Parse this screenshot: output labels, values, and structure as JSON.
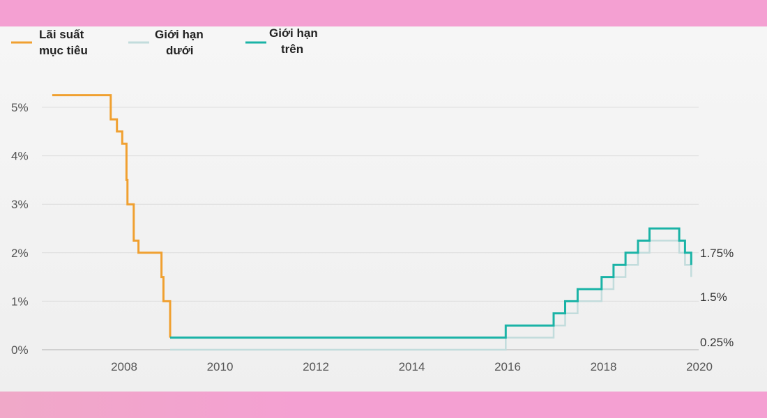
{
  "chart_data": {
    "type": "line",
    "legend": [
      {
        "name": "Lãi suất mục tiêu",
        "lines": [
          "Lãi suất",
          "mục tiêu"
        ],
        "color": "#f0a030"
      },
      {
        "name": "Giới hạn dưới",
        "lines": [
          "Giới hạn",
          "dưới"
        ],
        "color": "#c2dcdc"
      },
      {
        "name": "Giới hạn trên",
        "lines": [
          "Giới hạn",
          "trên"
        ],
        "color": "#1ab3a6"
      }
    ],
    "y_ticks": [
      "0%",
      "1%",
      "2%",
      "3%",
      "4%",
      "5%"
    ],
    "x_ticks": [
      "2008",
      "2010",
      "2012",
      "2014",
      "2016",
      "2018",
      "2020"
    ],
    "xlim": [
      2006.5,
      2020.0
    ],
    "ylim": [
      0,
      5.5
    ],
    "grid": true,
    "annotations": [
      "1.75%",
      "1.5%",
      "0.25%"
    ],
    "series": [
      {
        "name": "Lãi suất mục tiêu",
        "color": "#f0a030",
        "points": [
          [
            2006.5,
            5.25
          ],
          [
            2007.72,
            5.25
          ],
          [
            2007.72,
            4.75
          ],
          [
            2007.85,
            4.75
          ],
          [
            2007.85,
            4.5
          ],
          [
            2007.96,
            4.5
          ],
          [
            2007.96,
            4.25
          ],
          [
            2008.05,
            4.25
          ],
          [
            2008.05,
            3.5
          ],
          [
            2008.07,
            3.5
          ],
          [
            2008.07,
            3.0
          ],
          [
            2008.2,
            3.0
          ],
          [
            2008.2,
            2.25
          ],
          [
            2008.3,
            2.25
          ],
          [
            2008.3,
            2.0
          ],
          [
            2008.78,
            2.0
          ],
          [
            2008.78,
            1.5
          ],
          [
            2008.82,
            1.5
          ],
          [
            2008.82,
            1.0
          ],
          [
            2008.96,
            1.0
          ],
          [
            2008.96,
            0.25
          ]
        ]
      },
      {
        "name": "Giới hạn dưới",
        "color": "#c2dcdc",
        "points": [
          [
            2008.96,
            0.0
          ],
          [
            2015.96,
            0.0
          ],
          [
            2015.96,
            0.25
          ],
          [
            2016.96,
            0.25
          ],
          [
            2016.96,
            0.5
          ],
          [
            2017.2,
            0.5
          ],
          [
            2017.2,
            0.75
          ],
          [
            2017.46,
            0.75
          ],
          [
            2017.46,
            1.0
          ],
          [
            2017.96,
            1.0
          ],
          [
            2017.96,
            1.25
          ],
          [
            2018.21,
            1.25
          ],
          [
            2018.21,
            1.5
          ],
          [
            2018.46,
            1.5
          ],
          [
            2018.46,
            1.75
          ],
          [
            2018.72,
            1.75
          ],
          [
            2018.72,
            2.0
          ],
          [
            2018.96,
            2.0
          ],
          [
            2018.96,
            2.25
          ],
          [
            2019.58,
            2.25
          ],
          [
            2019.58,
            2.0
          ],
          [
            2019.7,
            2.0
          ],
          [
            2019.7,
            1.75
          ],
          [
            2019.83,
            1.75
          ],
          [
            2019.83,
            1.5
          ]
        ]
      },
      {
        "name": "Giới hạn trên",
        "color": "#1ab3a6",
        "points": [
          [
            2008.96,
            0.25
          ],
          [
            2015.96,
            0.25
          ],
          [
            2015.96,
            0.5
          ],
          [
            2016.96,
            0.5
          ],
          [
            2016.96,
            0.75
          ],
          [
            2017.2,
            0.75
          ],
          [
            2017.2,
            1.0
          ],
          [
            2017.46,
            1.0
          ],
          [
            2017.46,
            1.25
          ],
          [
            2017.96,
            1.25
          ],
          [
            2017.96,
            1.5
          ],
          [
            2018.21,
            1.5
          ],
          [
            2018.21,
            1.75
          ],
          [
            2018.46,
            1.75
          ],
          [
            2018.46,
            2.0
          ],
          [
            2018.72,
            2.0
          ],
          [
            2018.72,
            2.25
          ],
          [
            2018.96,
            2.25
          ],
          [
            2018.96,
            2.5
          ],
          [
            2019.58,
            2.5
          ],
          [
            2019.58,
            2.25
          ],
          [
            2019.7,
            2.25
          ],
          [
            2019.7,
            2.0
          ],
          [
            2019.83,
            2.0
          ],
          [
            2019.83,
            1.75
          ]
        ]
      }
    ]
  }
}
